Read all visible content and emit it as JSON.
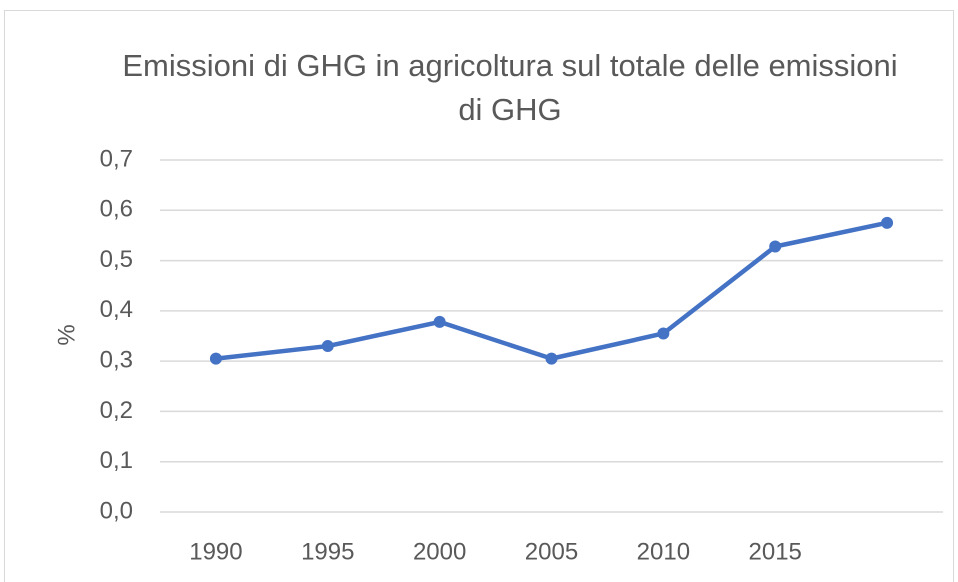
{
  "chart_data": {
    "type": "line",
    "title": "Emissioni di GHG in agricoltura sul totale delle emissioni di GHG",
    "y_label": "%",
    "categories": [
      "1990",
      "1995",
      "2000",
      "2005",
      "2010",
      "2015",
      null
    ],
    "series": [
      {
        "name": null,
        "color": "#4472c4",
        "values": [
          0.305,
          0.33,
          0.378,
          0.305,
          0.355,
          0.528,
          0.575
        ]
      }
    ],
    "ylim": [
      0,
      0.7
    ],
    "yticks": [
      {
        "value": 0,
        "label": "0,0"
      },
      {
        "value": 0.1,
        "label": "0,1"
      },
      {
        "value": 0.2,
        "label": "0,2"
      },
      {
        "value": 0.3,
        "label": "0,3"
      },
      {
        "value": 0.4,
        "label": "0,4"
      },
      {
        "value": 0.5,
        "label": "0,5"
      },
      {
        "value": 0.6,
        "label": "0,6"
      },
      {
        "value": 0.7,
        "label": "0,7"
      }
    ],
    "grid": true
  }
}
